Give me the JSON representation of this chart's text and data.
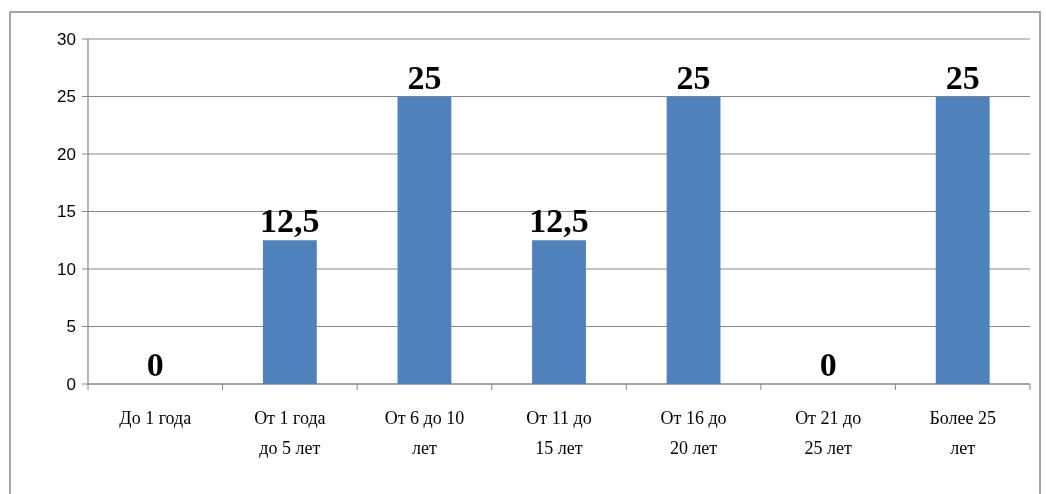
{
  "chart_data": {
    "type": "bar",
    "categories": [
      "До 1 года",
      "От 1 года до 5 лет",
      "От 6 до 10 лет",
      "От 11 до 15 лет",
      "От 16 до 20 лет",
      "От 21 до 25 лет",
      "Более 25 лет"
    ],
    "values": [
      0,
      12.5,
      25,
      12.5,
      25,
      0,
      25
    ],
    "value_labels": [
      "0",
      "12,5",
      "25",
      "12,5",
      "25",
      "0",
      "25"
    ],
    "color": "#4f81bd",
    "ylim": [
      0,
      30
    ],
    "yticks": [
      0,
      5,
      10,
      15,
      20,
      25,
      30
    ],
    "grid": "y"
  }
}
